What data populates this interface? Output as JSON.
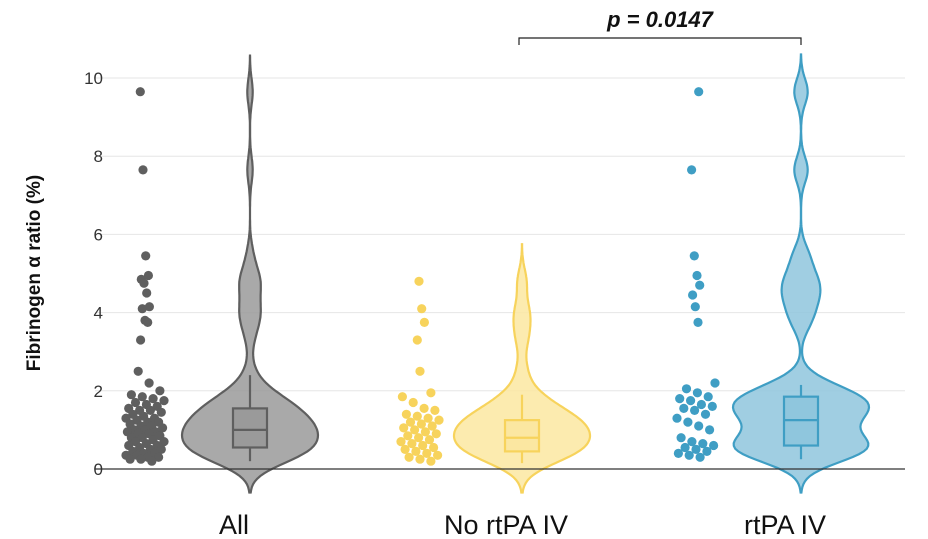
{
  "chart_data": {
    "type": "violin",
    "ylabel": "Fibrinogen α ratio (%)",
    "ylim": [
      -0.6,
      10.6
    ],
    "yticks": [
      "0",
      "2",
      "4",
      "6",
      "8",
      "10"
    ],
    "grid": true,
    "annotation": {
      "text": "p = 0.0147",
      "between": [
        "No rtPA IV",
        "rtPA IV"
      ]
    },
    "groups": [
      {
        "name": "All",
        "color": "#5f5f5f",
        "fill": "#9a9a9a",
        "box": {
          "q1": 0.55,
          "median": 1.0,
          "q3": 1.55,
          "whisker_low": 0.2,
          "whisker_high": 2.4
        },
        "points": [
          9.65,
          7.65,
          5.45,
          4.95,
          4.85,
          4.75,
          4.5,
          4.15,
          4.1,
          3.8,
          3.75,
          3.3,
          2.5,
          2.2,
          2.0,
          1.9,
          1.85,
          1.8,
          1.75,
          1.7,
          1.65,
          1.6,
          1.55,
          1.5,
          1.5,
          1.45,
          1.4,
          1.35,
          1.3,
          1.3,
          1.25,
          1.2,
          1.2,
          1.15,
          1.1,
          1.1,
          1.05,
          1.0,
          1.0,
          0.95,
          0.95,
          0.9,
          0.9,
          0.85,
          0.8,
          0.8,
          0.75,
          0.7,
          0.7,
          0.65,
          0.6,
          0.6,
          0.55,
          0.5,
          0.5,
          0.45,
          0.4,
          0.4,
          0.35,
          0.35,
          0.3,
          0.3,
          0.25,
          0.25,
          0.2
        ]
      },
      {
        "name": "No rtPA IV",
        "color": "#f7d35c",
        "fill": "#fbe7a1",
        "box": {
          "q1": 0.45,
          "median": 0.8,
          "q3": 1.25,
          "whisker_low": 0.15,
          "whisker_high": 1.9
        },
        "points": [
          4.8,
          4.1,
          3.75,
          3.3,
          2.5,
          1.95,
          1.85,
          1.7,
          1.55,
          1.5,
          1.4,
          1.35,
          1.3,
          1.25,
          1.2,
          1.15,
          1.1,
          1.05,
          1.0,
          0.95,
          0.9,
          0.85,
          0.8,
          0.75,
          0.7,
          0.65,
          0.6,
          0.55,
          0.5,
          0.45,
          0.4,
          0.35,
          0.3,
          0.25,
          0.2
        ]
      },
      {
        "name": "rtPA IV",
        "color": "#3f9ec4",
        "fill": "#8fc6dd",
        "box": {
          "q1": 0.6,
          "median": 1.25,
          "q3": 1.85,
          "whisker_low": 0.25,
          "whisker_high": 2.15
        },
        "points": [
          9.65,
          7.65,
          5.45,
          4.95,
          4.7,
          4.45,
          4.15,
          3.75,
          2.2,
          2.05,
          1.95,
          1.85,
          1.8,
          1.75,
          1.65,
          1.6,
          1.55,
          1.5,
          1.4,
          1.3,
          1.2,
          1.1,
          1.0,
          0.8,
          0.7,
          0.65,
          0.6,
          0.55,
          0.5,
          0.45,
          0.4,
          0.35,
          0.3
        ]
      }
    ]
  }
}
